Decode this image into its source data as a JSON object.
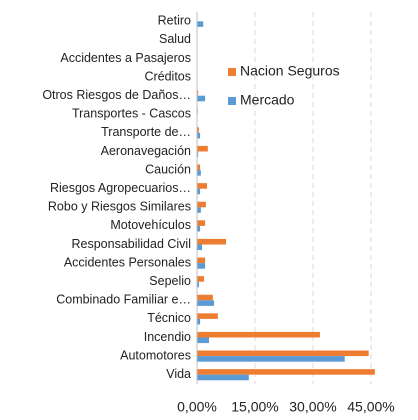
{
  "chart_data": {
    "type": "hbar",
    "categories": [
      "Retiro",
      "Salud",
      "Accidentes a Pasajeros",
      "Créditos",
      "Otros Riesgos de Daños…",
      "Transportes - Cascos",
      "Transporte de…",
      "Aeronavegación",
      "Caución",
      "Riesgos Agropecuarios…",
      "Robo y Riesgos Similares",
      "Motovehículos",
      "Responsabilidad Civil",
      "Accidentes Personales",
      "Sepelio",
      "Combinado Familiar e…",
      "Técnico",
      "Incendio",
      "Automotores",
      "Vida"
    ],
    "series": [
      {
        "name": "Nacion Seguros",
        "color": "#ed7d31",
        "values": [
          0,
          0,
          0,
          0,
          0.3,
          0.2,
          0.5,
          2.8,
          0.8,
          2.6,
          2.3,
          2.1,
          7.5,
          2.1,
          1.8,
          4.1,
          5.4,
          31.8,
          44.4,
          46
        ]
      },
      {
        "name": "Mercado",
        "color": "#5b9bd5",
        "values": [
          1.6,
          0.1,
          0,
          0,
          2.1,
          0,
          0.8,
          0.3,
          1.0,
          0.8,
          1.0,
          0.8,
          1.3,
          2.1,
          0.5,
          4.4,
          0.8,
          3.1,
          38.2,
          13.4
        ]
      }
    ],
    "xlim": [
      0,
      52.5
    ],
    "xticks": [
      {
        "value": 0,
        "label": "0,00%"
      },
      {
        "value": 15,
        "label": "15,00%"
      },
      {
        "value": 30,
        "label": "30,00%"
      },
      {
        "value": 45,
        "label": "45,00%"
      }
    ],
    "grid": true,
    "legend": "right"
  }
}
